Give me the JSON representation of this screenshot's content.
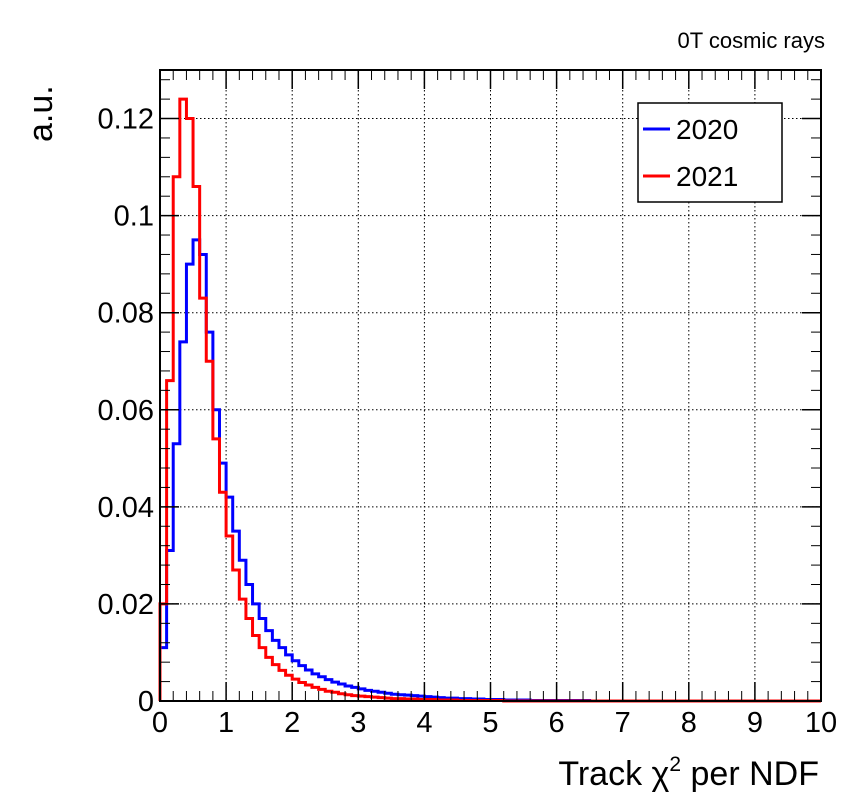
{
  "chart_data": {
    "type": "line",
    "title": "",
    "annotation": "0T cosmic rays",
    "xlabel_prefix": "Track ",
    "xlabel_symbol": "χ",
    "xlabel_sup": "2",
    "xlabel_suffix": " per NDF",
    "ylabel": "a.u.",
    "xlim": [
      0,
      10
    ],
    "ylim": [
      0,
      0.13
    ],
    "xticks": [
      "0",
      "1",
      "2",
      "3",
      "4",
      "5",
      "6",
      "7",
      "8",
      "9",
      "10"
    ],
    "yticks": [
      "0",
      "0.02",
      "0.04",
      "0.06",
      "0.08",
      "0.1",
      "0.12"
    ],
    "grid": true,
    "legend_position": "top-right",
    "bin_width": 0.1,
    "series": [
      {
        "name": "2020",
        "color": "#0000ff",
        "values": [
          0.011,
          0.031,
          0.053,
          0.074,
          0.09,
          0.095,
          0.092,
          0.076,
          0.06,
          0.049,
          0.042,
          0.035,
          0.029,
          0.024,
          0.02,
          0.017,
          0.0145,
          0.0125,
          0.011,
          0.0095,
          0.0083,
          0.0073,
          0.0064,
          0.0056,
          0.005,
          0.0044,
          0.0039,
          0.0035,
          0.0031,
          0.0028,
          0.0025,
          0.0022,
          0.002,
          0.0018,
          0.0016,
          0.0014,
          0.0013,
          0.0012,
          0.0011,
          0.001,
          0.0009,
          0.0008,
          0.0007,
          0.0006,
          0.0006,
          0.0005,
          0.0005,
          0.0004,
          0.0004,
          0.0003,
          0.0003,
          0.0003,
          0.0002,
          0.0002,
          0.0002,
          0.0002,
          0.0001,
          0.0001,
          0.0001,
          0.0001,
          0.0001,
          0.0001,
          0.0001,
          0.0001,
          0.0001,
          0.0,
          0.0,
          0.0,
          0.0,
          0.0,
          0.0,
          0.0,
          0.0,
          0.0,
          0.0,
          0.0,
          0.0,
          0.0,
          0.0,
          0.0,
          0.0,
          0.0,
          0.0,
          0.0,
          0.0,
          0.0,
          0.0,
          0.0,
          0.0,
          0.0,
          0.0,
          0.0,
          0.0,
          0.0,
          0.0,
          0.0,
          0.0,
          0.0,
          0.0,
          0.0
        ]
      },
      {
        "name": "2021",
        "color": "#ff0000",
        "values": [
          0.02,
          0.066,
          0.108,
          0.124,
          0.12,
          0.106,
          0.083,
          0.07,
          0.054,
          0.043,
          0.034,
          0.027,
          0.021,
          0.017,
          0.0135,
          0.011,
          0.009,
          0.0075,
          0.0063,
          0.0053,
          0.0045,
          0.0038,
          0.0033,
          0.0028,
          0.0024,
          0.002,
          0.0018,
          0.0015,
          0.0013,
          0.0011,
          0.001,
          0.0009,
          0.0008,
          0.0007,
          0.0006,
          0.0005,
          0.0005,
          0.0004,
          0.0004,
          0.0003,
          0.0003,
          0.0003,
          0.0002,
          0.0002,
          0.0002,
          0.0001,
          0.0001,
          0.0001,
          0.0001,
          0.0001,
          0.0001,
          0.0001,
          0.0,
          0.0,
          0.0,
          0.0,
          0.0,
          0.0,
          0.0,
          0.0,
          0.0,
          0.0,
          0.0,
          0.0,
          0.0,
          0.0,
          0.0,
          0.0,
          0.0,
          0.0,
          0.0,
          0.0,
          0.0,
          0.0,
          0.0,
          0.0,
          0.0,
          0.0,
          0.0,
          0.0,
          0.0,
          0.0,
          0.0,
          0.0,
          0.0,
          0.0,
          0.0,
          0.0,
          0.0,
          0.0,
          0.0,
          0.0,
          0.0,
          0.0,
          0.0,
          0.0,
          0.0,
          0.0,
          0.0,
          0.0
        ]
      }
    ]
  }
}
